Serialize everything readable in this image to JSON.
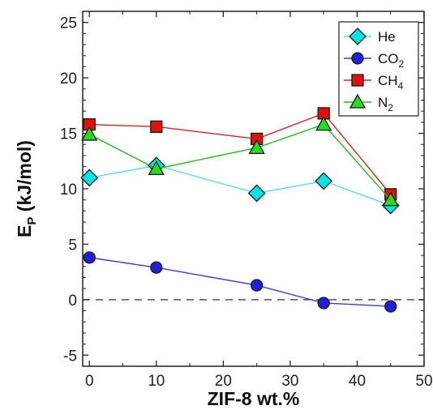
{
  "chart_data": {
    "type": "line",
    "xlabel": "ZIF-8 wt.%",
    "ylabel_main": "E",
    "ylabel_sub": "P",
    "ylabel_unit": " (kJ/mol)",
    "xlim": [
      -1,
      50
    ],
    "ylim": [
      -6,
      26
    ],
    "xticks": [
      0,
      10,
      20,
      30,
      40,
      50
    ],
    "yticks": [
      -5,
      0,
      5,
      10,
      15,
      20,
      25
    ],
    "reference_line": {
      "y": 0,
      "style": "dashed"
    },
    "legend_position": "top-right",
    "series": [
      {
        "name": "He",
        "name_main": "He",
        "name_sub": "",
        "marker": "diamond",
        "color": "#00e5e5",
        "line_color": "#55e0e0",
        "x": [
          0,
          10,
          25,
          35,
          45
        ],
        "y": [
          11.0,
          12.1,
          9.6,
          10.7,
          8.5
        ]
      },
      {
        "name": "CO2",
        "name_main": "CO",
        "name_sub": "2",
        "marker": "circle",
        "color": "#2020d8",
        "line_color": "#3a3ae0",
        "x": [
          0,
          10,
          25,
          35,
          45
        ],
        "y": [
          3.8,
          2.9,
          1.3,
          -0.3,
          -0.6
        ]
      },
      {
        "name": "CH4",
        "name_main": "CH",
        "name_sub": "4",
        "marker": "square",
        "color": "#e01010",
        "line_color": "#e02020",
        "x": [
          0,
          10,
          25,
          35,
          45
        ],
        "y": [
          15.8,
          15.6,
          14.5,
          16.8,
          9.5
        ]
      },
      {
        "name": "N2",
        "name_main": "N",
        "name_sub": "2",
        "marker": "triangle",
        "color": "#22dd22",
        "line_color": "#22bb22",
        "x": [
          0,
          10,
          25,
          35,
          45
        ],
        "y": [
          14.9,
          11.8,
          13.7,
          15.8,
          9.0
        ]
      }
    ]
  }
}
